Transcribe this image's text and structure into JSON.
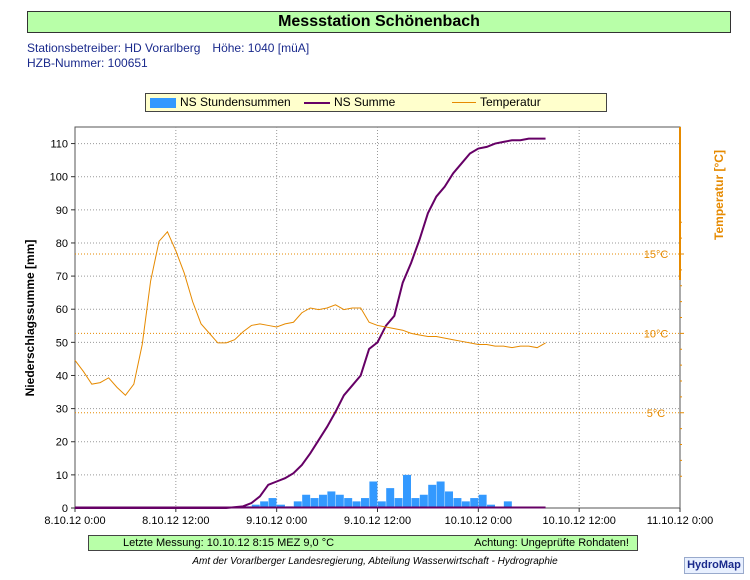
{
  "title": "Messstation Schönenbach",
  "info": {
    "operator": "Stationsbetreiber: HD Vorarlberg",
    "altitude": "Höhe: 1040 [müA]",
    "hzb": "HZB-Nummer: 100651"
  },
  "legend": {
    "bars": "NS Stundensummen",
    "sum": "NS Summe",
    "temp": "Temperatur"
  },
  "status": {
    "last": "Letzte Messung:  10.10.12 8:15 MEZ   9,0 °C",
    "warning": "Achtung: Ungeprüfte Rohdaten!"
  },
  "footer": "Amt der Vorarlberger Landesregierung, Abteilung Wasserwirtschaft - Hydrographie",
  "brand": "HydroMap",
  "colors": {
    "bars": "#3399ff",
    "sum": "#660066",
    "temp": "#e68a00",
    "title_bg": "#b8ffa8",
    "legend_bg": "#ffffcc"
  },
  "chart_data": {
    "type": "bar+line",
    "ylabel": "Niederschlagssumme [mm]",
    "y2label": "Temperatur [°C]",
    "ylim": [
      0,
      115
    ],
    "y2lim": [
      -1,
      23
    ],
    "xlim": [
      "8.10.12 0:00",
      "11.10.12 0:00"
    ],
    "x_ticks": [
      "8.10.12 0:00",
      "8.10.12 12:00",
      "9.10.12 0:00",
      "9.10.12 12:00",
      "10.10.12 0:00",
      "10.10.12 12:00",
      "11.10.12 0:00"
    ],
    "y_ticks": [
      0,
      10,
      20,
      30,
      40,
      50,
      60,
      70,
      80,
      90,
      100,
      110
    ],
    "y2_ticks": [
      "5°C",
      "10°C",
      "15°C"
    ],
    "y2_tick_values": [
      5,
      10,
      15
    ],
    "grid": true,
    "series": [
      {
        "name": "NS Stundensummen",
        "kind": "bar",
        "hours": [
          20,
          21,
          22,
          23,
          24,
          25,
          26,
          27,
          28,
          29,
          30,
          31,
          32,
          33,
          34,
          35,
          36,
          37,
          38,
          39,
          40,
          41,
          42,
          43,
          44,
          45,
          46,
          47,
          48,
          49,
          50,
          51,
          52,
          53,
          54,
          55
        ],
        "values": [
          0.5,
          1,
          2,
          3,
          1,
          0.5,
          2,
          4,
          3,
          4,
          5,
          4,
          3,
          2,
          3,
          8,
          2,
          6,
          3,
          10,
          3,
          4,
          7,
          8,
          5,
          3,
          2,
          3,
          4,
          1,
          0.3,
          2,
          0.3,
          0.2,
          0.1,
          0.1
        ]
      },
      {
        "name": "NS Summe",
        "kind": "line",
        "hours": [
          0,
          18,
          20,
          21,
          22,
          23,
          24,
          25,
          26,
          27,
          28,
          29,
          30,
          31,
          32,
          33,
          34,
          35,
          36,
          37,
          38,
          39,
          40,
          41,
          42,
          43,
          44,
          45,
          46,
          47,
          48,
          49,
          50,
          51,
          52,
          53,
          54,
          55,
          56
        ],
        "values": [
          0,
          0,
          0.5,
          1.5,
          3.5,
          7,
          8,
          9,
          10.5,
          13,
          16.5,
          20.5,
          24.5,
          29,
          34,
          37,
          40,
          48,
          50,
          55,
          58,
          68,
          74,
          81,
          89,
          94,
          97,
          101,
          104,
          107,
          108.5,
          109,
          110,
          110.5,
          111,
          111,
          111.5,
          111.5,
          111.5
        ]
      },
      {
        "name": "Temperatur",
        "kind": "line",
        "axis": "y2",
        "hours": [
          0,
          1,
          2,
          3,
          4,
          5,
          6,
          7,
          8,
          9,
          10,
          11,
          12,
          13,
          14,
          15,
          16,
          17,
          18,
          19,
          20,
          21,
          22,
          23,
          24,
          25,
          26,
          27,
          28,
          29,
          30,
          31,
          32,
          33,
          34,
          35,
          36,
          37,
          38,
          39,
          40,
          41,
          42,
          43,
          44,
          45,
          46,
          47,
          48,
          49,
          50,
          51,
          52,
          53,
          54,
          55,
          56
        ],
        "values": [
          8.3,
          7.6,
          6.8,
          6.9,
          7.2,
          6.6,
          6.1,
          6.8,
          9.3,
          13.3,
          15.8,
          16.4,
          15.2,
          13.8,
          12.0,
          10.6,
          10.0,
          9.4,
          9.4,
          9.6,
          10.1,
          10.5,
          10.6,
          10.5,
          10.4,
          10.6,
          10.7,
          11.3,
          11.6,
          11.5,
          11.6,
          11.8,
          11.5,
          11.6,
          11.6,
          10.7,
          10.5,
          10.4,
          10.3,
          10.2,
          10.0,
          9.9,
          9.8,
          9.8,
          9.7,
          9.6,
          9.5,
          9.4,
          9.3,
          9.3,
          9.2,
          9.2,
          9.1,
          9.2,
          9.2,
          9.1,
          9.4
        ]
      }
    ]
  }
}
